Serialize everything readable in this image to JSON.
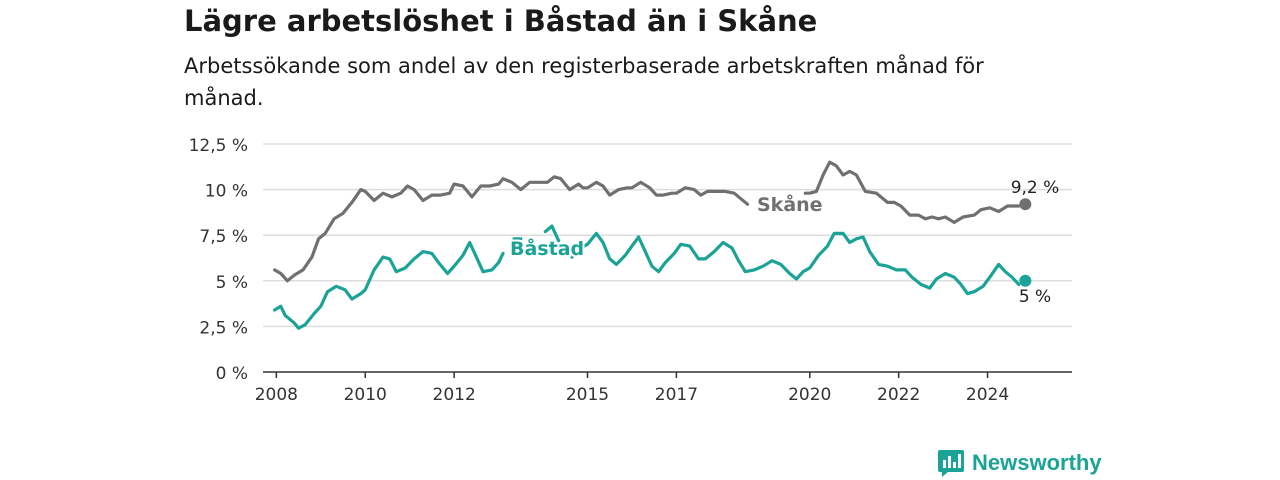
{
  "title": "Lägre arbetslöshet i Båstad än i Skåne",
  "subtitle": "Arbetssökande som andel av den registerbaserade arbetskraften månad för månad.",
  "brand": "Newsworthy",
  "colors": {
    "skane": "#707070",
    "bastad": "#1aa396",
    "grid": "#dddddd",
    "axis": "#333333"
  },
  "chart_data": {
    "type": "line",
    "xlabel": "",
    "ylabel": "",
    "ylim": [
      0,
      12.5
    ],
    "xlim": [
      2007.7,
      2025.9
    ],
    "grid": true,
    "y_ticks": [
      0,
      2.5,
      5,
      7.5,
      10,
      12.5
    ],
    "y_tick_labels": [
      "0 %",
      "2,5 %",
      "5 %",
      "7,5 %",
      "10 %",
      "12,5 %"
    ],
    "x_ticks": [
      2008,
      2010,
      2012,
      2015,
      2017,
      2020,
      2022,
      2024
    ],
    "x_tick_labels": [
      "2008",
      "2010",
      "2012",
      "2015",
      "2017",
      "2020",
      "2022",
      "2024"
    ],
    "series": [
      {
        "name": "Skåne",
        "end_label": "9,2 %",
        "points": [
          [
            [
              2007.96,
              5.6
            ],
            [
              2008.1,
              5.4
            ],
            [
              2008.25,
              5.0
            ],
            [
              2008.4,
              5.3
            ],
            [
              2008.6,
              5.6
            ],
            [
              2008.8,
              6.3
            ],
            [
              2008.95,
              7.3
            ],
            [
              2009.1,
              7.6
            ],
            [
              2009.3,
              8.4
            ],
            [
              2009.5,
              8.7
            ],
            [
              2009.7,
              9.3
            ],
            [
              2009.9,
              10.0
            ],
            [
              2010.0,
              9.9
            ],
            [
              2010.2,
              9.4
            ],
            [
              2010.4,
              9.8
            ],
            [
              2010.6,
              9.6
            ],
            [
              2010.8,
              9.8
            ],
            [
              2010.95,
              10.2
            ],
            [
              2011.1,
              10.0
            ],
            [
              2011.3,
              9.4
            ],
            [
              2011.5,
              9.7
            ],
            [
              2011.7,
              9.7
            ],
            [
              2011.9,
              9.8
            ],
            [
              2012.0,
              10.3
            ],
            [
              2012.2,
              10.2
            ],
            [
              2012.4,
              9.6
            ],
            [
              2012.6,
              10.2
            ],
            [
              2012.8,
              10.2
            ],
            [
              2013.0,
              10.3
            ],
            [
              2013.1,
              10.6
            ],
            [
              2013.3,
              10.4
            ],
            [
              2013.5,
              10.0
            ],
            [
              2013.7,
              10.4
            ],
            [
              2013.9,
              10.4
            ],
            [
              2014.1,
              10.4
            ],
            [
              2014.25,
              10.7
            ],
            [
              2014.4,
              10.6
            ],
            [
              2014.6,
              10.0
            ],
            [
              2014.8,
              10.3
            ],
            [
              2014.9,
              10.1
            ],
            [
              2015.0,
              10.1
            ],
            [
              2015.2,
              10.4
            ],
            [
              2015.35,
              10.2
            ],
            [
              2015.5,
              9.7
            ],
            [
              2015.7,
              10.0
            ],
            [
              2015.9,
              10.1
            ],
            [
              2016.0,
              10.1
            ],
            [
              2016.2,
              10.4
            ],
            [
              2016.4,
              10.1
            ],
            [
              2016.55,
              9.7
            ],
            [
              2016.7,
              9.7
            ],
            [
              2016.9,
              9.8
            ],
            [
              2017.0,
              9.8
            ],
            [
              2017.2,
              10.1
            ],
            [
              2017.4,
              10.0
            ],
            [
              2017.55,
              9.7
            ],
            [
              2017.7,
              9.9
            ],
            [
              2017.9,
              9.9
            ],
            [
              2018.1,
              9.9
            ],
            [
              2018.3,
              9.8
            ],
            [
              2018.45,
              9.5
            ],
            [
              2018.6,
              9.2
            ]
          ],
          [
            [
              2019.9,
              9.8
            ],
            [
              2020.0,
              9.8
            ],
            [
              2020.15,
              9.9
            ],
            [
              2020.3,
              10.8
            ],
            [
              2020.45,
              11.5
            ],
            [
              2020.6,
              11.3
            ],
            [
              2020.75,
              10.8
            ],
            [
              2020.9,
              11.0
            ],
            [
              2021.05,
              10.8
            ],
            [
              2021.25,
              9.9
            ],
            [
              2021.5,
              9.8
            ],
            [
              2021.75,
              9.3
            ],
            [
              2021.9,
              9.3
            ],
            [
              2022.05,
              9.1
            ],
            [
              2022.25,
              8.6
            ],
            [
              2022.45,
              8.6
            ],
            [
              2022.6,
              8.4
            ],
            [
              2022.75,
              8.5
            ],
            [
              2022.9,
              8.4
            ],
            [
              2023.05,
              8.5
            ],
            [
              2023.25,
              8.2
            ],
            [
              2023.45,
              8.5
            ],
            [
              2023.7,
              8.6
            ],
            [
              2023.85,
              8.9
            ],
            [
              2024.05,
              9.0
            ],
            [
              2024.25,
              8.8
            ],
            [
              2024.45,
              9.1
            ],
            [
              2024.7,
              9.1
            ]
          ]
        ],
        "end_point": [
          2024.85,
          9.2
        ]
      },
      {
        "name": "Båstad",
        "end_label": "5 %",
        "points": [
          [
            [
              2007.96,
              3.4
            ],
            [
              2008.1,
              3.6
            ],
            [
              2008.2,
              3.1
            ],
            [
              2008.4,
              2.7
            ],
            [
              2008.5,
              2.4
            ],
            [
              2008.65,
              2.6
            ],
            [
              2008.85,
              3.2
            ],
            [
              2009.0,
              3.6
            ],
            [
              2009.15,
              4.4
            ],
            [
              2009.35,
              4.7
            ],
            [
              2009.55,
              4.5
            ],
            [
              2009.7,
              4.0
            ],
            [
              2009.9,
              4.3
            ],
            [
              2010.0,
              4.5
            ],
            [
              2010.2,
              5.6
            ],
            [
              2010.4,
              6.3
            ],
            [
              2010.55,
              6.2
            ],
            [
              2010.7,
              5.5
            ],
            [
              2010.9,
              5.7
            ],
            [
              2011.1,
              6.2
            ],
            [
              2011.3,
              6.6
            ],
            [
              2011.5,
              6.5
            ],
            [
              2011.65,
              6.0
            ],
            [
              2011.85,
              5.4
            ],
            [
              2012.0,
              5.8
            ],
            [
              2012.2,
              6.4
            ],
            [
              2012.35,
              7.1
            ],
            [
              2012.5,
              6.3
            ],
            [
              2012.65,
              5.5
            ],
            [
              2012.85,
              5.6
            ],
            [
              2013.0,
              6.0
            ],
            [
              2013.1,
              6.5
            ]
          ],
          [
            [
              2013.35,
              7.3
            ],
            [
              2013.5,
              7.3
            ]
          ],
          [
            [
              2014.05,
              7.7
            ],
            [
              2014.2,
              8.0
            ],
            [
              2014.35,
              7.2
            ]
          ],
          [
            [
              2014.65,
              6.3
            ],
            [
              2014.85,
              6.8
            ],
            [
              2015.0,
              7.0
            ],
            [
              2015.2,
              7.6
            ],
            [
              2015.35,
              7.1
            ],
            [
              2015.5,
              6.2
            ],
            [
              2015.65,
              5.9
            ],
            [
              2015.85,
              6.4
            ],
            [
              2016.0,
              6.9
            ],
            [
              2016.15,
              7.4
            ],
            [
              2016.3,
              6.6
            ],
            [
              2016.45,
              5.8
            ],
            [
              2016.6,
              5.5
            ],
            [
              2016.75,
              6.0
            ],
            [
              2016.95,
              6.5
            ],
            [
              2017.1,
              7.0
            ],
            [
              2017.3,
              6.9
            ],
            [
              2017.5,
              6.2
            ],
            [
              2017.65,
              6.2
            ],
            [
              2017.85,
              6.6
            ],
            [
              2018.05,
              7.1
            ],
            [
              2018.25,
              6.8
            ],
            [
              2018.4,
              6.1
            ],
            [
              2018.55,
              5.5
            ],
            [
              2018.75,
              5.6
            ],
            [
              2018.95,
              5.8
            ],
            [
              2019.15,
              6.1
            ],
            [
              2019.35,
              5.9
            ],
            [
              2019.55,
              5.4
            ],
            [
              2019.7,
              5.1
            ],
            [
              2019.85,
              5.5
            ],
            [
              2020.0,
              5.7
            ],
            [
              2020.2,
              6.4
            ],
            [
              2020.4,
              6.9
            ],
            [
              2020.55,
              7.6
            ],
            [
              2020.75,
              7.6
            ],
            [
              2020.9,
              7.1
            ],
            [
              2021.05,
              7.3
            ],
            [
              2021.2,
              7.4
            ],
            [
              2021.35,
              6.6
            ],
            [
              2021.55,
              5.9
            ],
            [
              2021.75,
              5.8
            ],
            [
              2021.95,
              5.6
            ],
            [
              2022.15,
              5.6
            ],
            [
              2022.3,
              5.2
            ],
            [
              2022.5,
              4.8
            ],
            [
              2022.7,
              4.6
            ],
            [
              2022.85,
              5.1
            ],
            [
              2023.05,
              5.4
            ],
            [
              2023.25,
              5.2
            ],
            [
              2023.4,
              4.8
            ],
            [
              2023.55,
              4.3
            ],
            [
              2023.7,
              4.4
            ],
            [
              2023.9,
              4.7
            ],
            [
              2024.05,
              5.2
            ],
            [
              2024.25,
              5.9
            ],
            [
              2024.4,
              5.5
            ],
            [
              2024.55,
              5.2
            ],
            [
              2024.7,
              4.8
            ]
          ]
        ],
        "end_point": [
          2024.85,
          5.0
        ]
      }
    ]
  }
}
